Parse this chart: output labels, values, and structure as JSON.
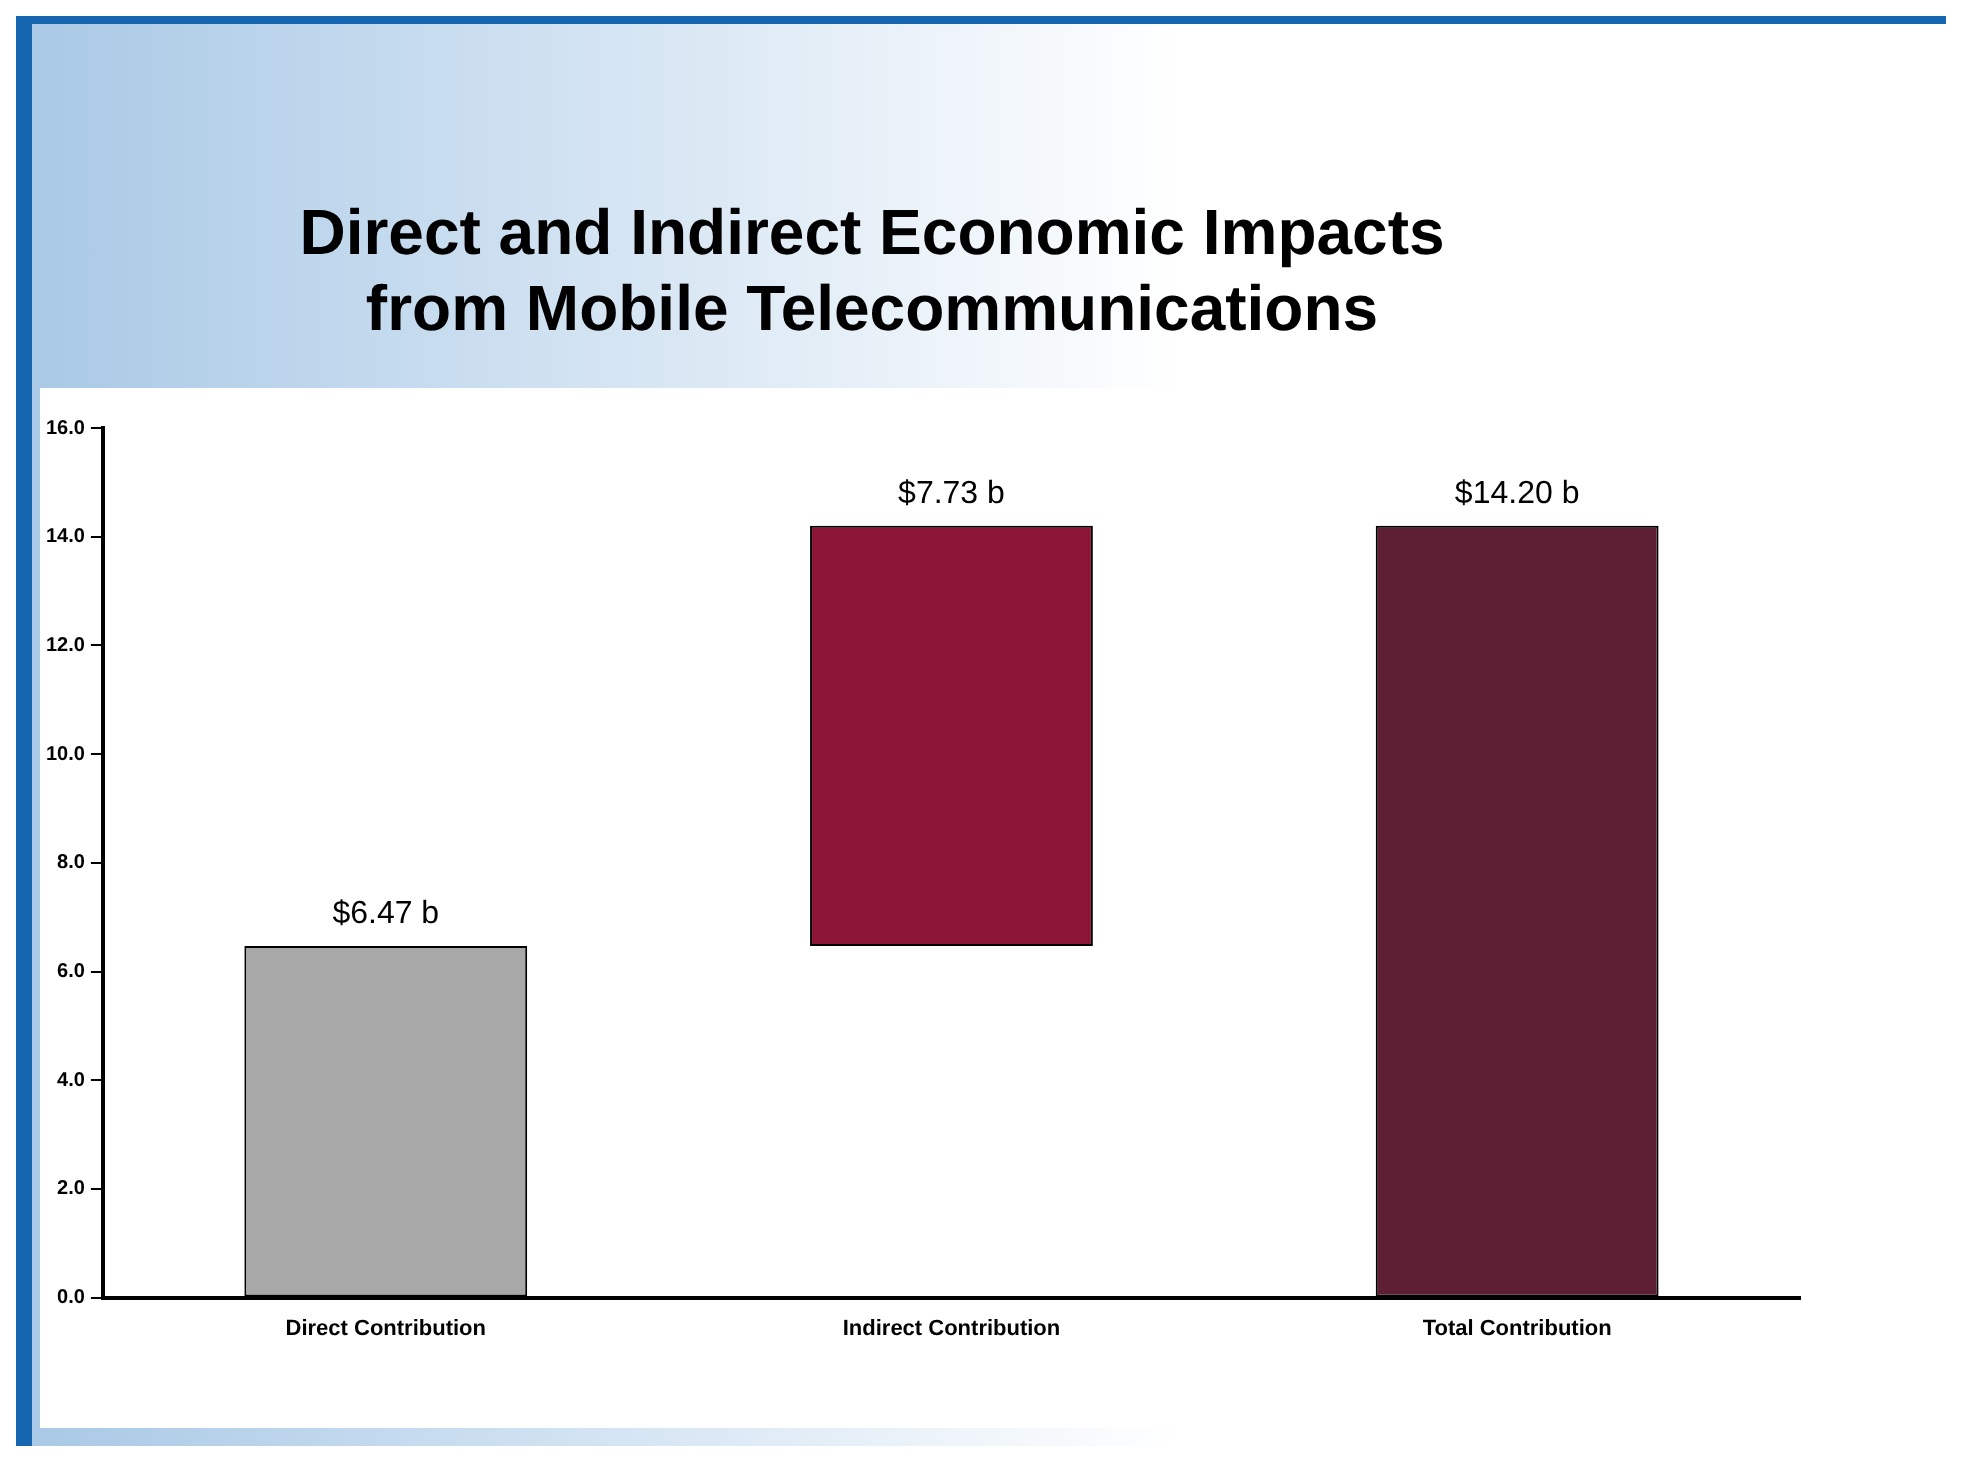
{
  "chart_data": {
    "type": "bar",
    "title": "Direct and Indirect Economic Impacts\nfrom Mobile Telecommunications",
    "categories": [
      "Direct Contribution",
      "Indirect Contribution",
      "Total Contribution"
    ],
    "values": [
      6.47,
      7.73,
      14.2
    ],
    "base": [
      0,
      6.47,
      0
    ],
    "colors": [
      "#a8a8a8",
      "#8c1537",
      "#5e1e33"
    ],
    "value_labels": [
      "$6.47 b",
      "$7.73 b",
      "$14.20 b"
    ],
    "ylim": [
      0,
      16
    ],
    "yticks": [
      {
        "value": 0,
        "label": "0.0"
      },
      {
        "value": 2,
        "label": "2.0"
      },
      {
        "value": 4,
        "label": "4.0"
      },
      {
        "value": 6,
        "label": "6.0"
      },
      {
        "value": 8,
        "label": "8.0"
      },
      {
        "value": 10,
        "label": "10.0"
      },
      {
        "value": 12,
        "label": "12.0"
      },
      {
        "value": 14,
        "label": "14.0"
      },
      {
        "value": 16,
        "label": "16.0"
      }
    ],
    "grid": false
  }
}
